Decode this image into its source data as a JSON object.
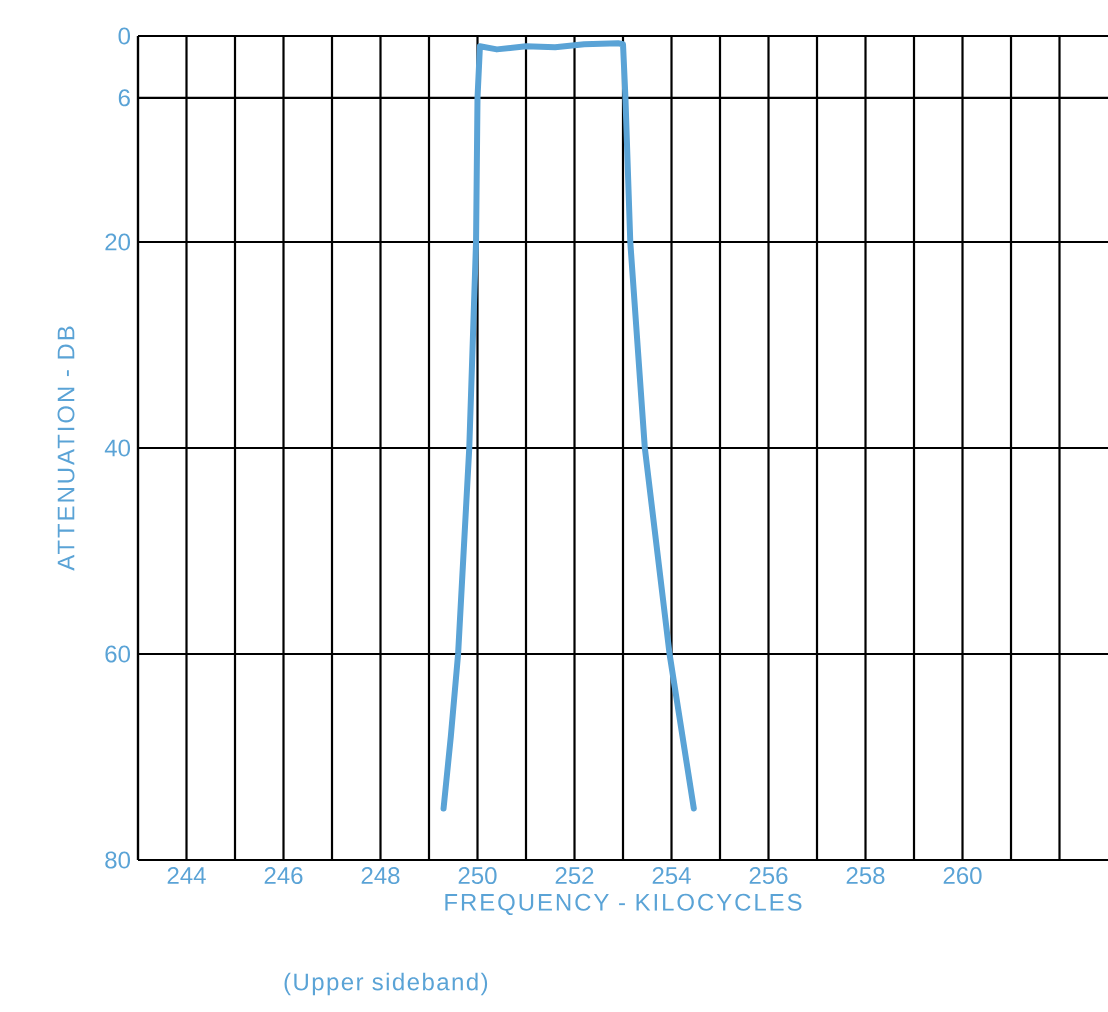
{
  "chart_data": {
    "type": "line",
    "xlabel": "FREQUENCY - KILOCYCLES",
    "ylabel": "ATTENUATION - DB",
    "annotations": [
      "(Upper sideband)"
    ],
    "x": [
      249.3,
      249.45,
      249.6,
      249.83,
      249.97,
      250.0,
      250.05,
      250.4,
      251.0,
      251.6,
      252.2,
      252.9,
      253.0,
      253.05,
      253.15,
      253.45,
      253.96,
      254.46
    ],
    "series": [
      {
        "color": "#5aa3d6",
        "values": [
          75,
          68,
          60,
          40,
          20,
          6,
          1.0,
          1.3,
          1.0,
          1.1,
          0.8,
          0.7,
          0.8,
          6,
          20,
          40,
          60,
          75
        ]
      }
    ],
    "xlim": [
      243,
      263
    ],
    "ylim": [
      80,
      0
    ],
    "xticks": [
      {
        "value": 243,
        "label": null
      },
      244,
      {
        "value": 245,
        "label": null
      },
      246,
      {
        "value": 247,
        "label": null
      },
      248,
      {
        "value": 249,
        "label": null
      },
      250,
      {
        "value": 251,
        "label": null
      },
      252,
      {
        "value": 253,
        "label": null
      },
      254,
      {
        "value": 255,
        "label": null
      },
      256,
      {
        "value": 257,
        "label": null
      },
      258,
      {
        "value": 259,
        "label": null
      },
      260,
      {
        "value": 261,
        "label": null
      },
      {
        "value": 262,
        "label": null
      }
    ],
    "yticks": [
      0,
      6,
      20,
      40,
      60,
      80
    ],
    "grid": true,
    "marker": "none",
    "line_style": "solid"
  }
}
